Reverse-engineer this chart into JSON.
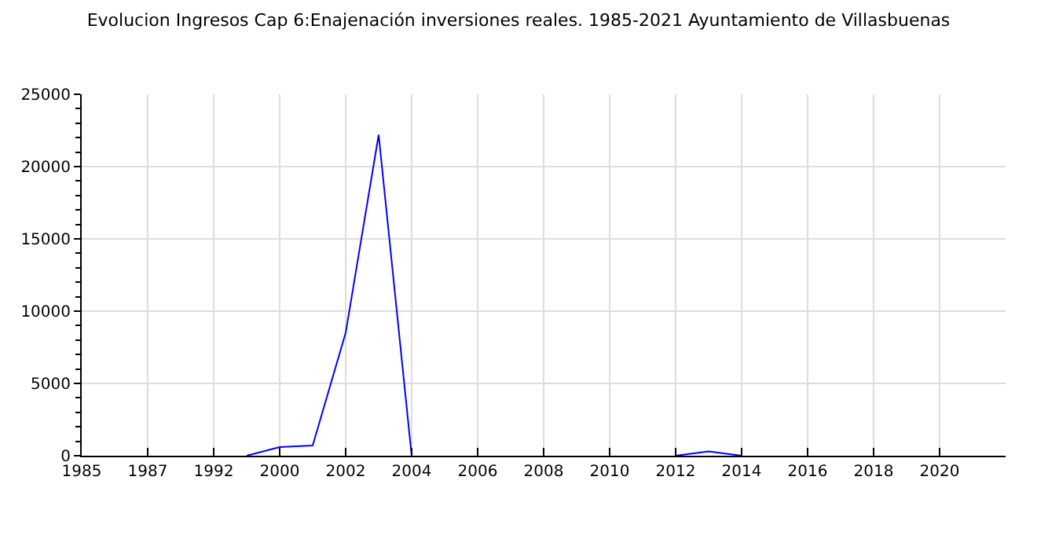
{
  "chart_data": {
    "type": "line",
    "title": "Evolucion Ingresos Cap 6:Enajenación inversiones reales. 1985-2021 Ayuntamiento de Villasbuenas",
    "categories": [
      "1985",
      null,
      "1987",
      null,
      "1992",
      null,
      "2000",
      null,
      "2002",
      null,
      "2004",
      null,
      "2006",
      null,
      "2008",
      null,
      "2010",
      null,
      "2012",
      null,
      "2014",
      null,
      "2016",
      null,
      "2018",
      null,
      "2020",
      null
    ],
    "series": [
      {
        "color": "#0000ff",
        "values": [
          null,
          null,
          null,
          null,
          null,
          0,
          600,
          700,
          8500,
          22200,
          0,
          null,
          null,
          null,
          null,
          null,
          null,
          null,
          0,
          300,
          0,
          null,
          null,
          null,
          null,
          null,
          null,
          null
        ]
      }
    ],
    "ylim": [
      0,
      25000
    ],
    "yticks": [
      0,
      5000,
      10000,
      15000,
      20000,
      25000
    ],
    "grid": true,
    "marker": "none",
    "line_style": "solid"
  }
}
